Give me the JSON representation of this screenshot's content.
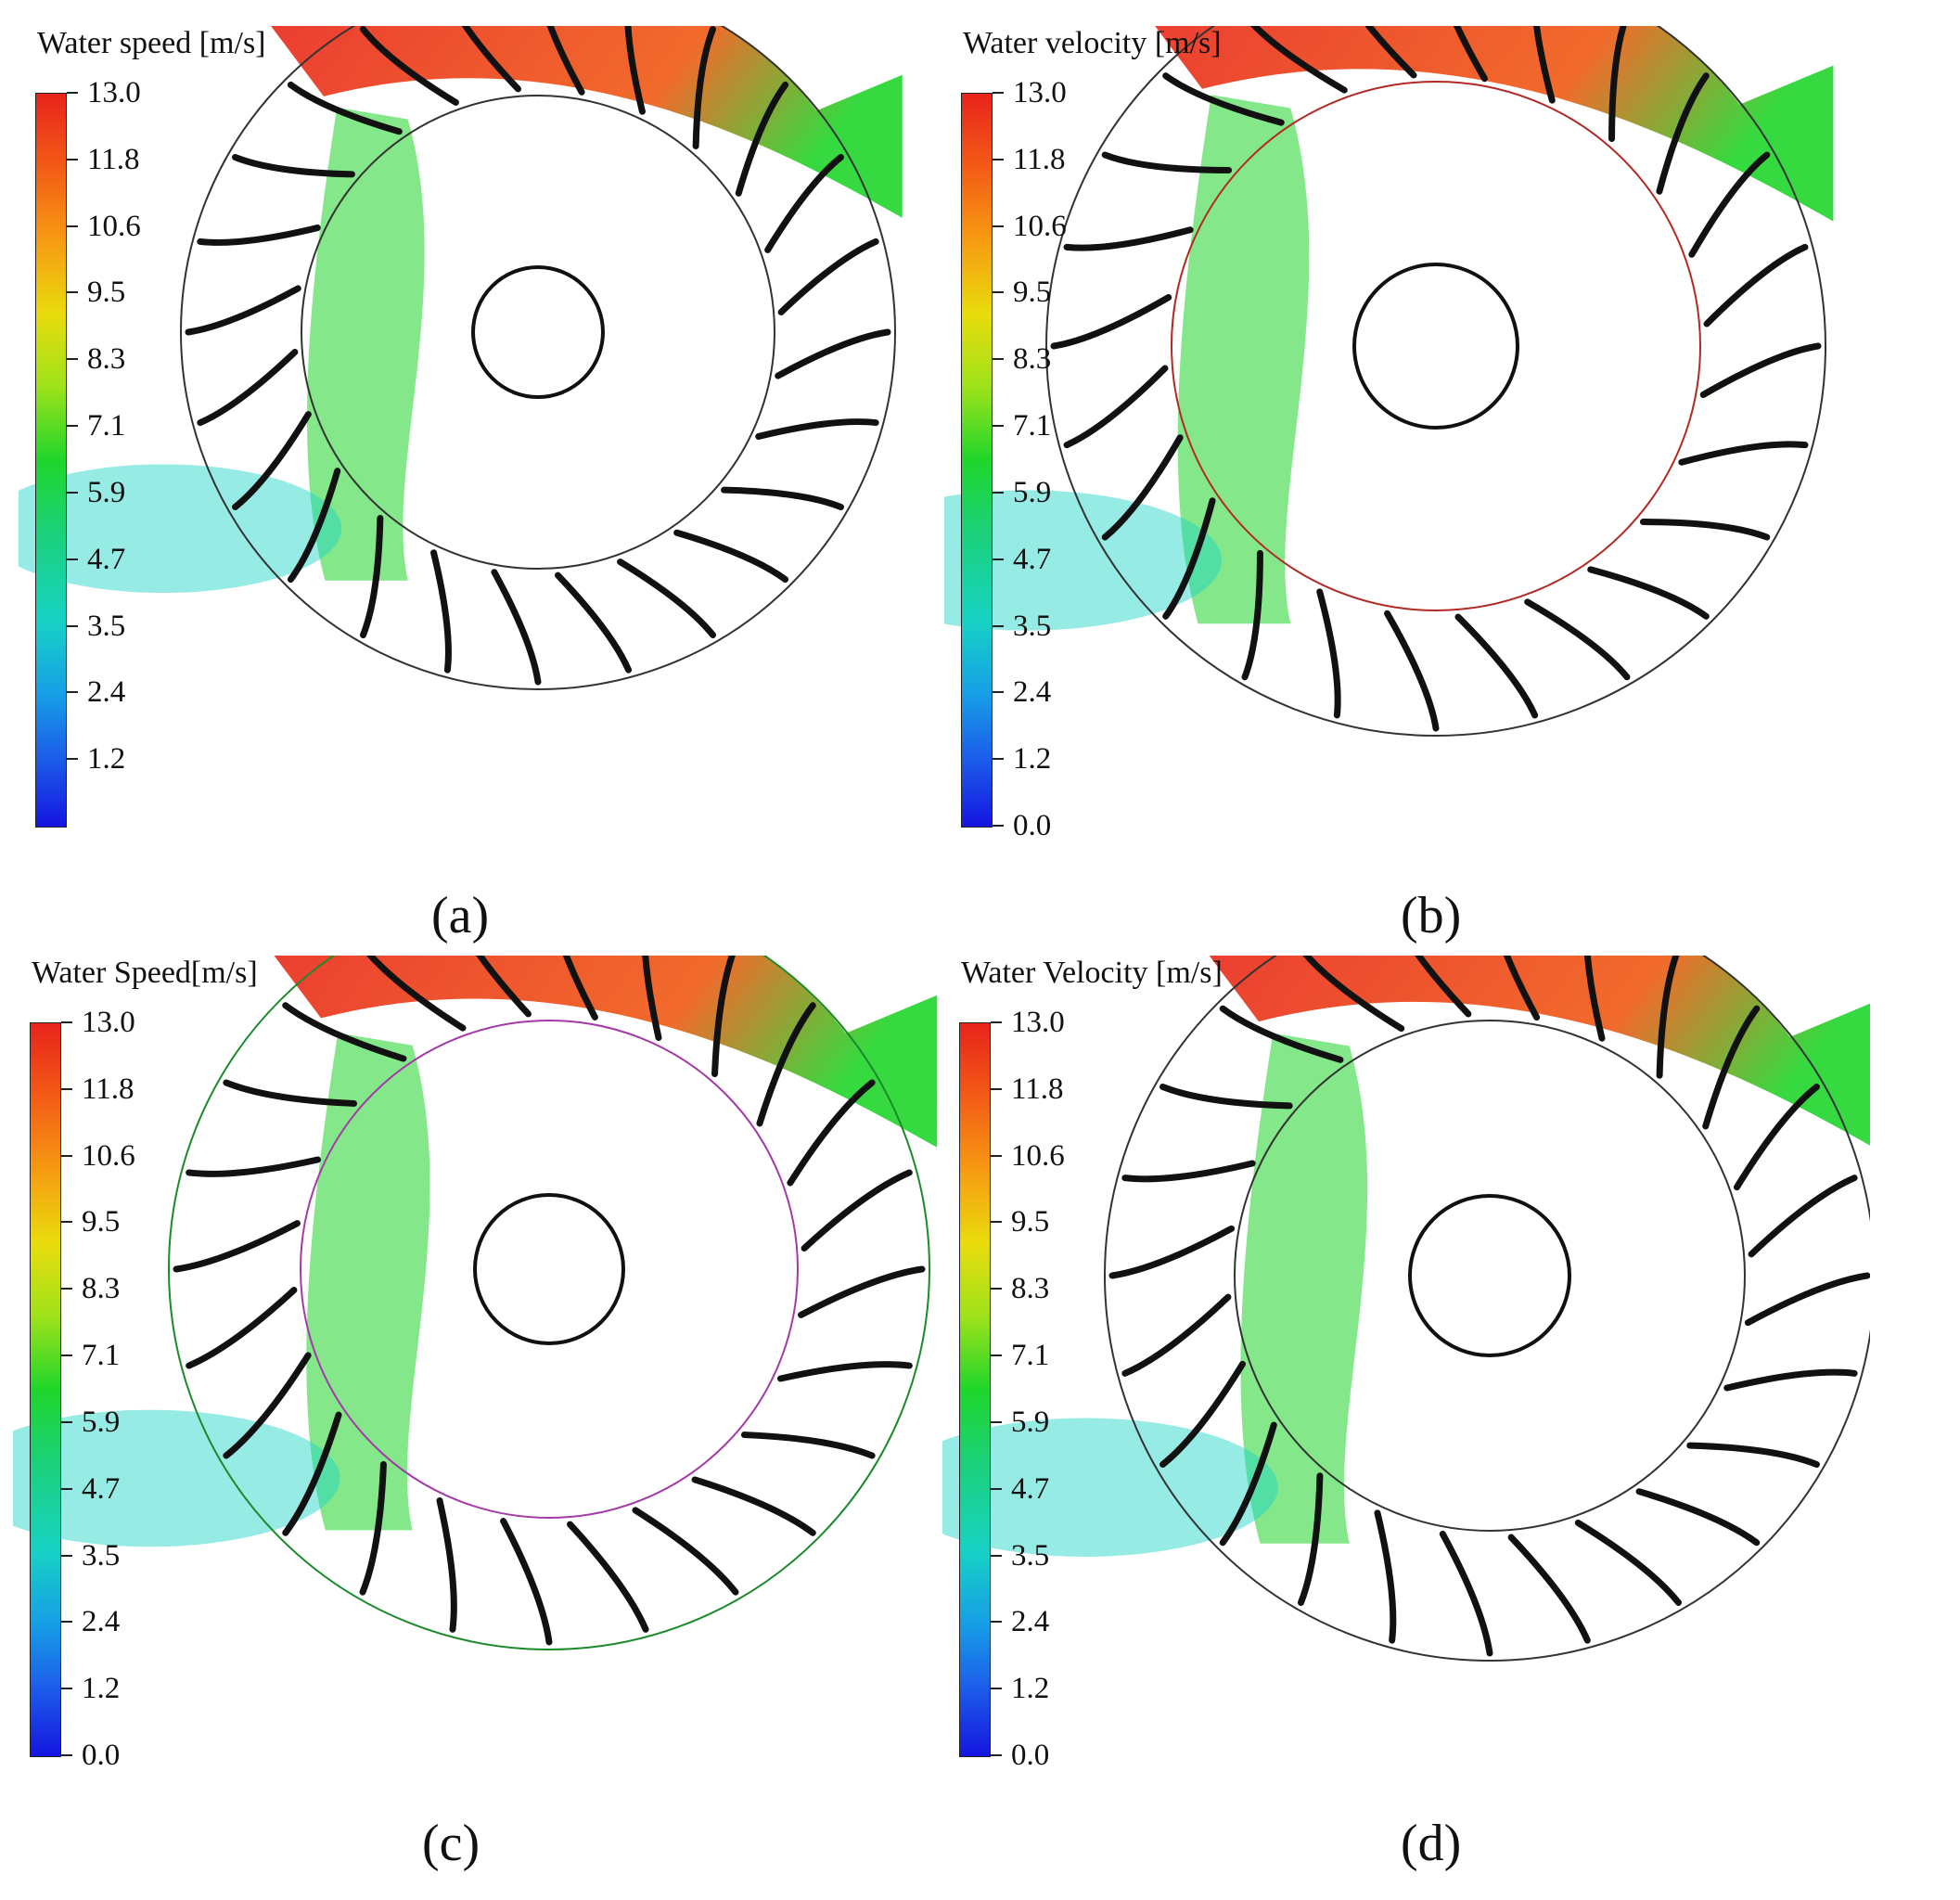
{
  "colors": {
    "fast": "#e8231b",
    "medium": "#1fd62b",
    "slow": "#17d2c5",
    "blade": "#111111",
    "ring_b_inner": "#b22a24",
    "ring_c_outer": "#1a8a2a",
    "ring_c_inner": "#a43aa8"
  },
  "panels": [
    {
      "caption": "(a)",
      "legend": {
        "title": "Water speed [m/s]",
        "ticks": [
          "13.0",
          "11.8",
          "10.6",
          "9.5",
          "8.3",
          "7.1",
          "5.9",
          "4.7",
          "3.5",
          "2.4",
          "1.2"
        ]
      }
    },
    {
      "caption": "(b)",
      "legend": {
        "title": "Water velocity [m/s]",
        "ticks": [
          "13.0",
          "11.8",
          "10.6",
          "9.5",
          "8.3",
          "7.1",
          "5.9",
          "4.7",
          "3.5",
          "2.4",
          "1.2",
          "0.0"
        ]
      }
    },
    {
      "caption": "(c)",
      "legend": {
        "title": "Water Speed[m/s]",
        "ticks": [
          "13.0",
          "11.8",
          "10.6",
          "9.5",
          "8.3",
          "7.1",
          "5.9",
          "4.7",
          "3.5",
          "2.4",
          "1.2",
          "0.0"
        ]
      }
    },
    {
      "caption": "(d)",
      "legend": {
        "title": "Water Velocity [m/s]",
        "ticks": [
          "13.0",
          "11.8",
          "10.6",
          "9.5",
          "8.3",
          "7.1",
          "5.9",
          "4.7",
          "3.5",
          "2.4",
          "1.2",
          "0.0"
        ]
      }
    }
  ]
}
